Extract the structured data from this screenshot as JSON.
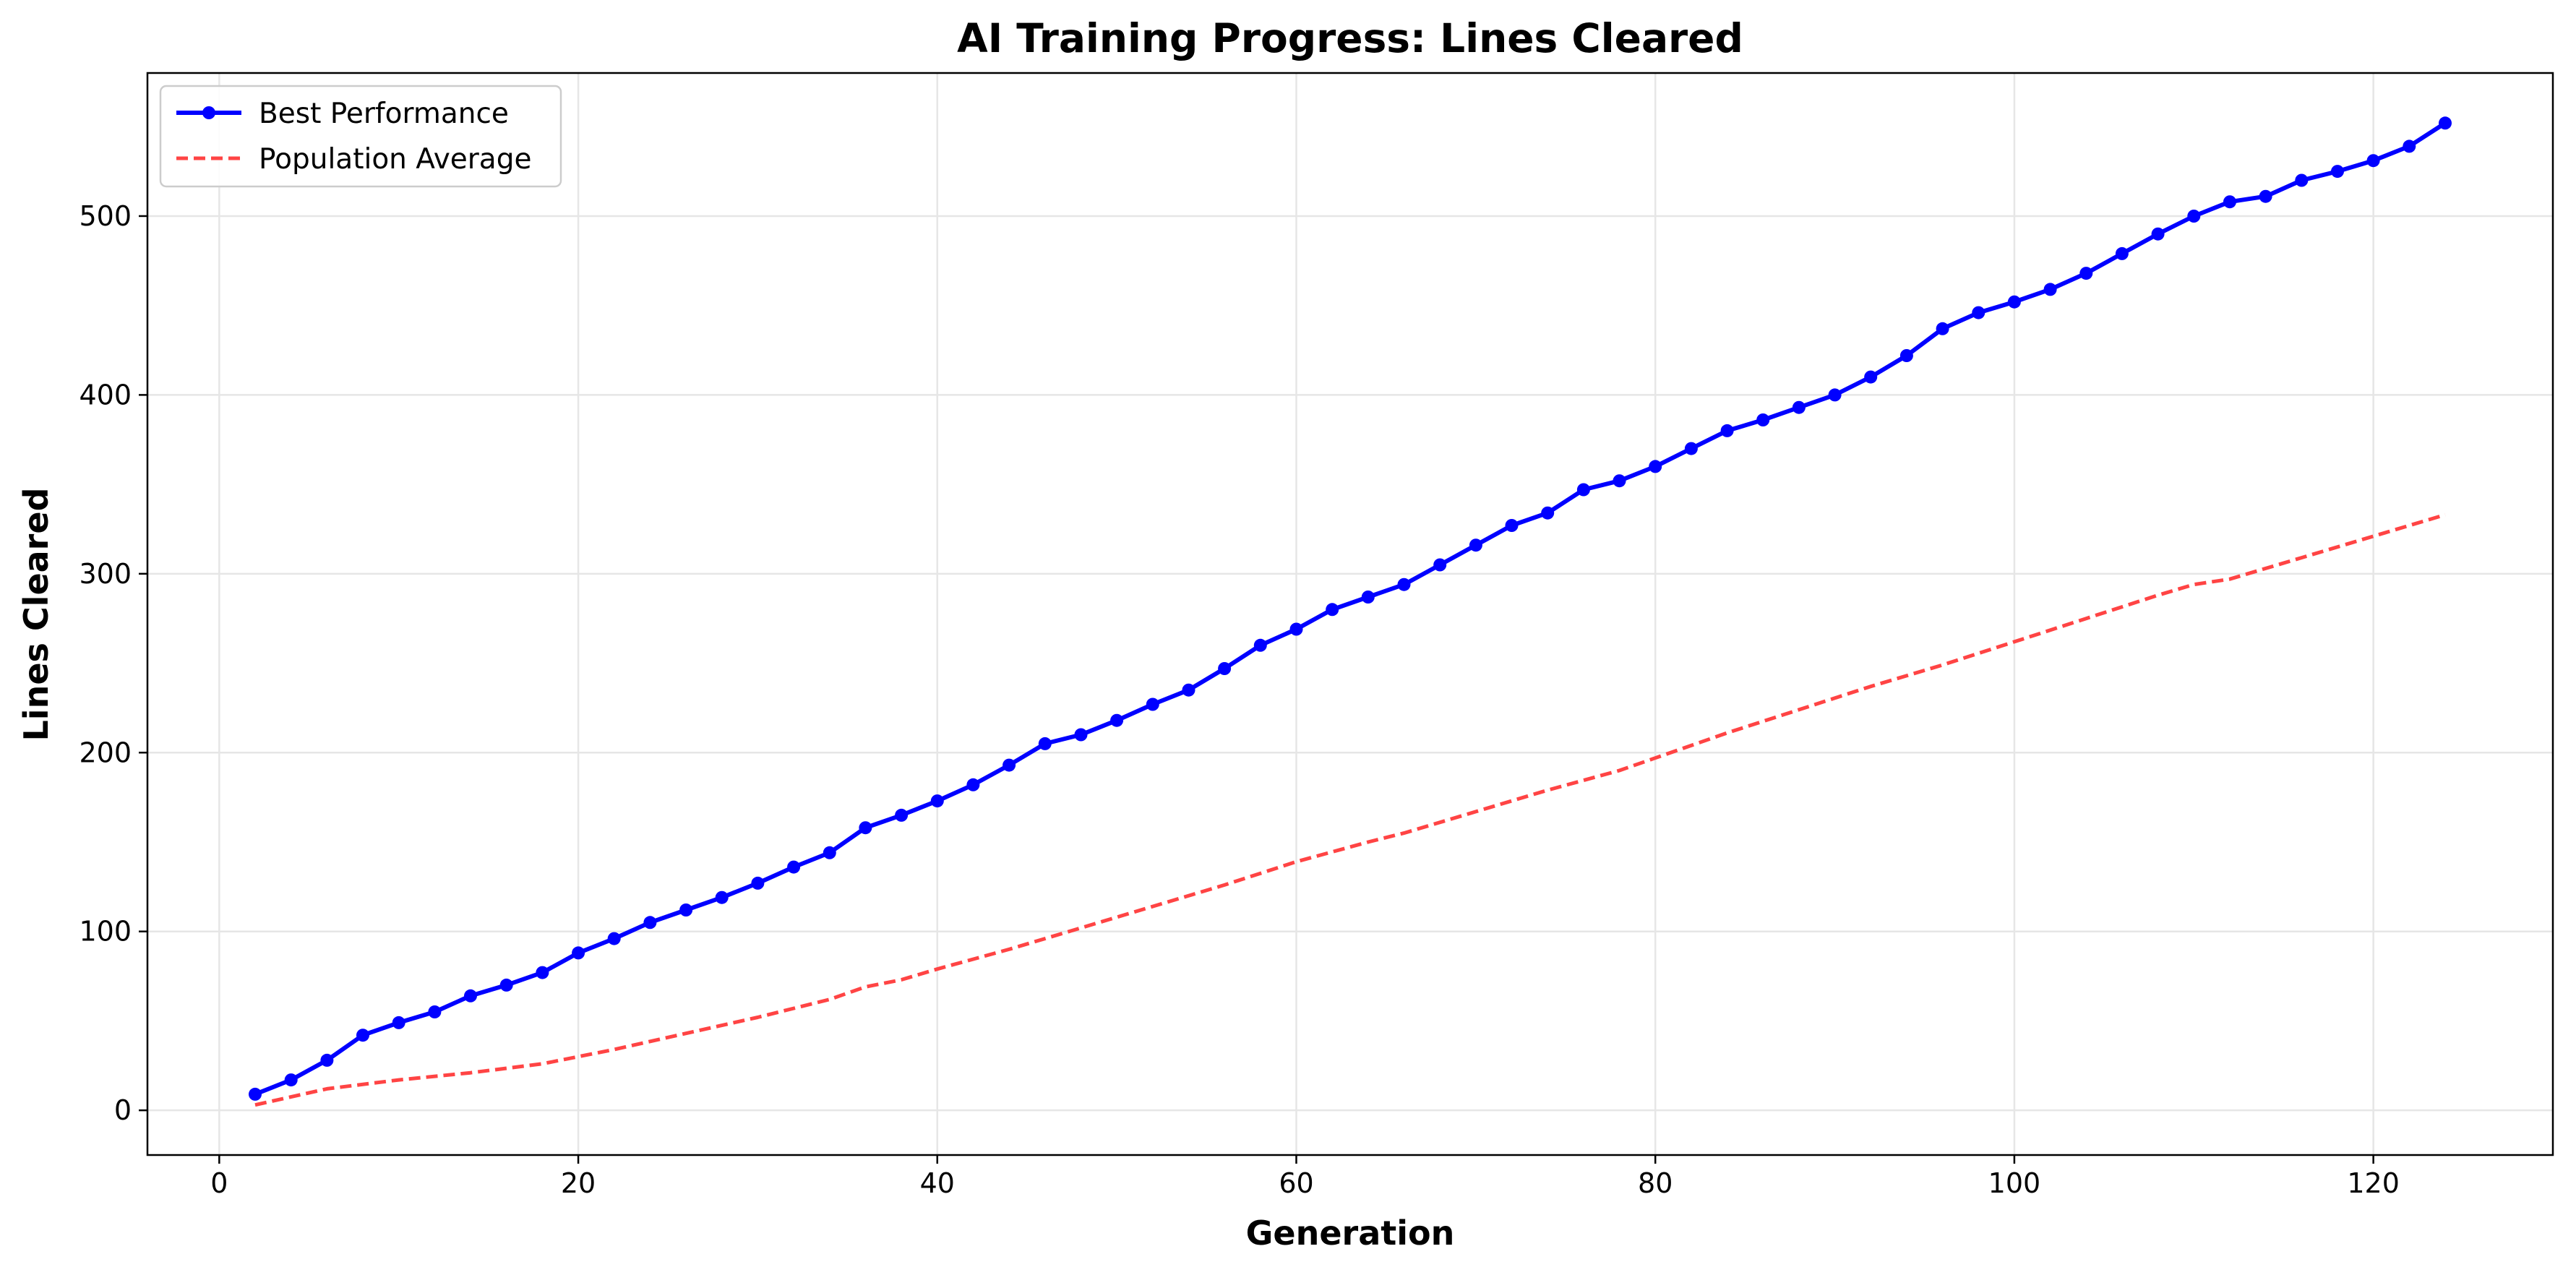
{
  "chart_data": {
    "type": "line",
    "title": "AI Training Progress: Lines Cleared",
    "xlabel": "Generation",
    "ylabel": "Lines Cleared",
    "xlim": [
      -4,
      130
    ],
    "ylim": [
      -25,
      580
    ],
    "xticks": [
      0,
      20,
      40,
      60,
      80,
      100,
      120
    ],
    "yticks": [
      0,
      100,
      200,
      300,
      400,
      500
    ],
    "grid": true,
    "legend_position": "top-left",
    "series": [
      {
        "name": "Best Performance",
        "color": "#0000ff",
        "style": "solid",
        "marker": "circle",
        "x": [
          2,
          4,
          6,
          8,
          10,
          12,
          14,
          16,
          18,
          20,
          22,
          24,
          26,
          28,
          30,
          32,
          34,
          36,
          38,
          40,
          42,
          44,
          46,
          48,
          50,
          52,
          54,
          56,
          58,
          60,
          62,
          64,
          66,
          68,
          70,
          72,
          74,
          76,
          78,
          80,
          82,
          84,
          86,
          88,
          90,
          92,
          94,
          96,
          98,
          100,
          102,
          104,
          106,
          108,
          110,
          112,
          114,
          116,
          118,
          120,
          122,
          124
        ],
        "y": [
          9,
          17,
          28,
          42,
          49,
          55,
          64,
          70,
          77,
          88,
          96,
          105,
          112,
          119,
          127,
          136,
          144,
          158,
          165,
          173,
          182,
          193,
          205,
          210,
          218,
          227,
          235,
          247,
          260,
          269,
          280,
          287,
          294,
          305,
          316,
          327,
          334,
          347,
          352,
          360,
          370,
          380,
          386,
          393,
          400,
          410,
          422,
          437,
          446,
          452,
          459,
          468,
          479,
          490,
          500,
          508,
          511,
          520,
          525,
          531,
          539,
          552
        ]
      },
      {
        "name": "Population Average",
        "color": "#ff4444",
        "style": "dashed",
        "marker": "none",
        "x": [
          2,
          6,
          10,
          14,
          18,
          22,
          26,
          30,
          34,
          36,
          38,
          40,
          44,
          48,
          52,
          56,
          60,
          64,
          66,
          70,
          74,
          78,
          80,
          84,
          88,
          92,
          96,
          100,
          104,
          108,
          110,
          112,
          116,
          120,
          124
        ],
        "y": [
          3,
          12,
          17,
          21,
          26,
          34,
          43,
          52,
          62,
          69,
          73,
          79,
          90,
          102,
          114,
          126,
          139,
          150,
          155,
          167,
          179,
          190,
          197,
          211,
          224,
          237,
          249,
          262,
          275,
          288,
          294,
          297,
          309,
          321,
          333
        ]
      }
    ]
  }
}
